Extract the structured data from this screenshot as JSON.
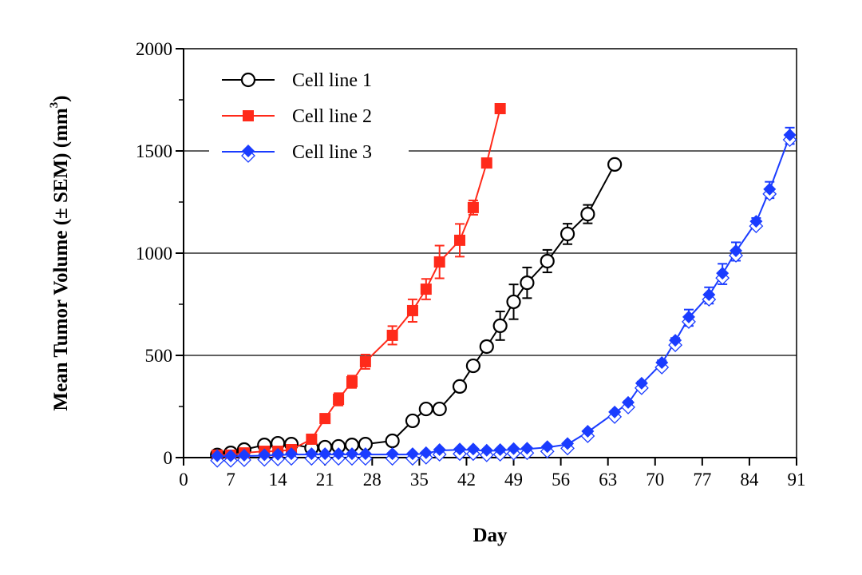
{
  "chart_data": {
    "type": "line",
    "title": "",
    "xlabel": "Day",
    "ylabel": "Mean Tumor Volume (± SEM) (mm",
    "ylabel_superscript": "3",
    "ylabel_suffix": ")",
    "xlim": [
      0,
      91
    ],
    "ylim": [
      0,
      2000
    ],
    "xticks": [
      0,
      7,
      14,
      21,
      28,
      35,
      42,
      49,
      56,
      63,
      70,
      77,
      84,
      91
    ],
    "yticks": [
      0,
      500,
      1000,
      1500,
      2000
    ],
    "grid": "horizontal at 500, 1000, 1500",
    "legend_position": "top-left",
    "series": [
      {
        "name": "Cell line 1",
        "color": "#000000",
        "marker": "open-circle",
        "x": [
          5,
          7,
          9,
          12,
          14,
          16,
          19,
          21,
          23,
          25,
          27,
          31,
          34,
          36,
          38,
          41,
          43,
          45,
          47,
          49,
          51,
          54,
          57,
          60,
          64
        ],
        "y": [
          13,
          23,
          39,
          62,
          70,
          66,
          47,
          51,
          55,
          62,
          66,
          82,
          180,
          238,
          238,
          348,
          449,
          543,
          645,
          762,
          855,
          961,
          1094,
          1191,
          1434
        ],
        "sem": [
          5,
          5,
          5,
          8,
          8,
          8,
          6,
          6,
          6,
          6,
          6,
          8,
          10,
          12,
          12,
          15,
          18,
          25,
          70,
          85,
          75,
          55,
          50,
          45,
          0
        ]
      },
      {
        "name": "Cell line 2",
        "color": "#ff2a1a",
        "marker": "filled-square",
        "x": [
          5,
          7,
          9,
          12,
          14,
          16,
          19,
          21,
          23,
          25,
          27,
          31,
          34,
          36,
          38,
          41,
          43,
          45,
          47
        ],
        "y": [
          12,
          12,
          23,
          31,
          31,
          39,
          90,
          191,
          285,
          371,
          469,
          598,
          719,
          824,
          957,
          1063,
          1223,
          1441,
          1707
        ],
        "sem": [
          4,
          4,
          5,
          5,
          5,
          5,
          8,
          15,
          30,
          30,
          35,
          45,
          55,
          50,
          80,
          80,
          35,
          0,
          0
        ]
      },
      {
        "name": "Cell line 3",
        "color": "#1a3cff",
        "marker": "half-filled-diamond",
        "x": [
          5,
          7,
          9,
          12,
          14,
          16,
          19,
          21,
          23,
          25,
          27,
          31,
          34,
          36,
          38,
          41,
          43,
          45,
          47,
          49,
          51,
          54,
          57,
          60,
          64,
          66,
          68,
          71,
          73,
          75,
          78,
          80,
          82,
          85,
          87,
          90
        ],
        "y": [
          5,
          5,
          8,
          10,
          12,
          15,
          15,
          15,
          15,
          15,
          15,
          15,
          15,
          20,
          35,
          38,
          38,
          32,
          35,
          40,
          42,
          50,
          65,
          125,
          219,
          266,
          360,
          461,
          570,
          684,
          793,
          898,
          1008,
          1152,
          1309,
          1574
        ],
        "sem": [
          2,
          2,
          2,
          2,
          2,
          2,
          2,
          2,
          2,
          2,
          2,
          2,
          2,
          3,
          4,
          4,
          4,
          4,
          4,
          4,
          4,
          5,
          6,
          8,
          10,
          10,
          12,
          15,
          15,
          40,
          40,
          50,
          45,
          20,
          40,
          40
        ]
      }
    ]
  }
}
